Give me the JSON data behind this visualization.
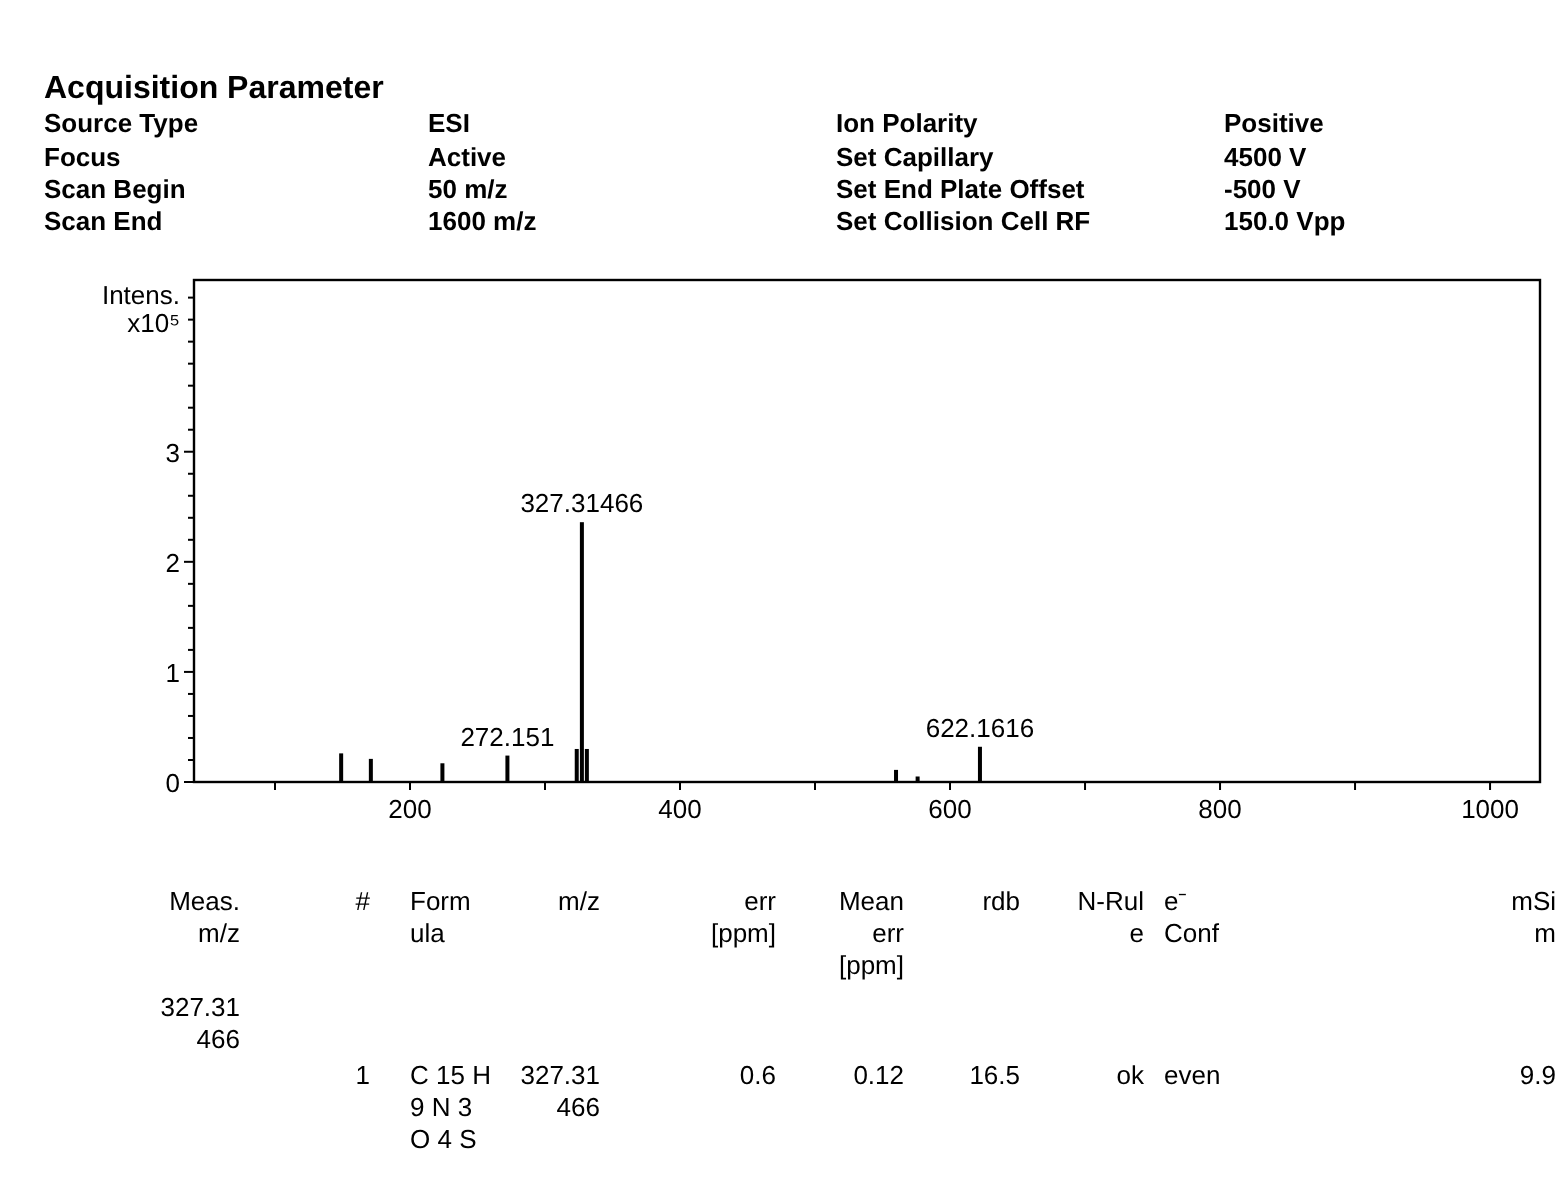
{
  "chart_data": {
    "type": "bar",
    "title": "Acquisition Parameter",
    "ylabel": "Intens.\nx10⁵",
    "x": [
      149,
      171,
      224,
      272.151,
      323.5,
      327.31466,
      331,
      560,
      576,
      622.1616
    ],
    "values": [
      0.26,
      0.21,
      0.17,
      0.24,
      0.3,
      2.36,
      0.3,
      0.11,
      0.05,
      0.32
    ],
    "color": "#000000",
    "xlim": [
      40,
      1037
    ],
    "ylim": [
      0,
      4.56
    ],
    "xticks": [
      {
        "value": 100,
        "label": null
      },
      200,
      {
        "value": 300,
        "label": null
      },
      400,
      {
        "value": 500,
        "label": null
      },
      600,
      {
        "value": 700,
        "label": null
      },
      800,
      {
        "value": 900,
        "label": null
      },
      1000
    ],
    "yticks": [
      0,
      {
        "value": 0.2,
        "label": null
      },
      {
        "value": 0.4,
        "label": null
      },
      {
        "value": 0.6,
        "label": null
      },
      {
        "value": 0.8,
        "label": null
      },
      1,
      {
        "value": 1.2,
        "label": null
      },
      {
        "value": 1.4,
        "label": null
      },
      {
        "value": 1.6,
        "label": null
      },
      {
        "value": 1.8,
        "label": null
      },
      2,
      {
        "value": 2.2,
        "label": null
      },
      {
        "value": 2.4,
        "label": null
      },
      {
        "value": 2.6,
        "label": null
      },
      {
        "value": 2.8,
        "label": null
      },
      3,
      {
        "value": 3.2,
        "label": null
      },
      {
        "value": 3.4,
        "label": null
      },
      {
        "value": 3.6,
        "label": null
      },
      {
        "value": 3.8,
        "label": null
      },
      {
        "value": 4,
        "label": null
      },
      {
        "value": 4.2,
        "label": null
      },
      {
        "value": 4.4,
        "label": null
      }
    ],
    "annotations": [
      {
        "text": "327.31466",
        "x": 327.31466,
        "y": 2.36
      },
      {
        "text": "272.151",
        "x": 272.151,
        "y": 0.24
      },
      {
        "text": "622.1616",
        "x": 622.1616,
        "y": 0.32
      },
      "Source Type",
      "ESI",
      "Focus",
      "Active",
      "Scan Begin",
      "50 m/z",
      "Scan End",
      "1600 m/z",
      "Ion Polarity",
      "Positive",
      "Set Capillary",
      "4500 V",
      "Set End Plate Offset",
      "-500 V",
      "Set Collision Cell RF",
      "150.0 Vpp",
      "Meas.\nm/z",
      "#",
      "Form\nula",
      "m/z",
      "err\n[ppm]",
      "Mean\nerr\n[ppm]",
      "rdb",
      "N-Rul\ne",
      "e⁻\nConf",
      "mSi\nm",
      "327.31\n466",
      "1",
      "C 15 H\n9  N 3\nO 4  S",
      "327.31\n466",
      "0.6",
      "0.12",
      "16.5",
      "ok",
      "even",
      "9.9"
    ]
  }
}
